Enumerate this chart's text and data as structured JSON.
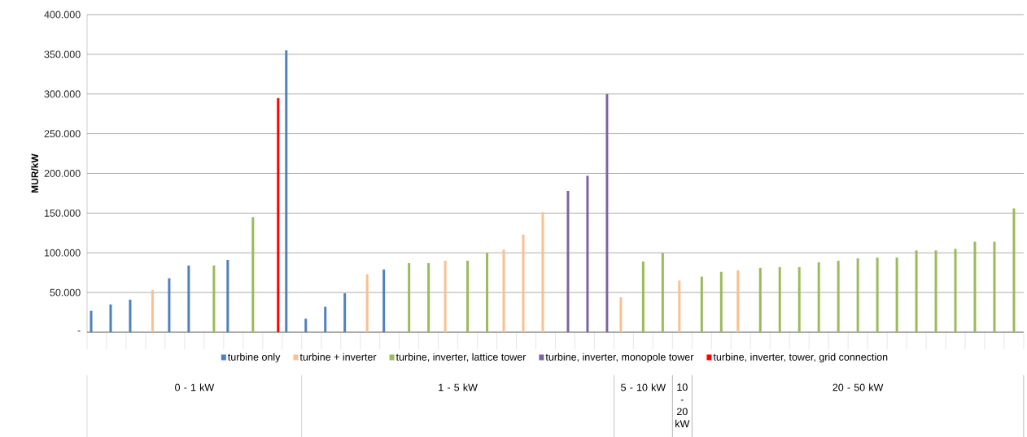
{
  "chart_data": {
    "type": "bar",
    "ylabel": "MUR/kW",
    "categories": [
      null,
      null,
      null,
      null,
      null,
      null,
      null,
      null,
      null,
      null,
      null,
      null,
      null,
      null,
      null,
      null,
      null,
      null,
      null,
      null,
      null,
      null,
      null,
      null,
      null,
      null,
      null,
      null,
      null,
      null,
      null,
      null,
      null,
      null,
      null,
      null,
      null,
      null,
      null,
      null,
      null,
      null,
      null,
      null,
      null,
      null,
      null,
      null
    ],
    "series": [
      {
        "name": "turbine only",
        "color": "#4f81bd",
        "values": [
          27000,
          35000,
          41000,
          null,
          68000,
          84000,
          null,
          91000,
          null,
          null,
          355000,
          17000,
          32000,
          49000,
          null,
          79000,
          null,
          null,
          null,
          null,
          null,
          null,
          null,
          null,
          null,
          null,
          null,
          null,
          null,
          null,
          null,
          null,
          null,
          null,
          null,
          null,
          null,
          null,
          null,
          null,
          null,
          null,
          null,
          null,
          null,
          null,
          null,
          null
        ]
      },
      {
        "name": "turbine + inverter",
        "color": "#fac090",
        "values": [
          null,
          null,
          null,
          53000,
          null,
          null,
          null,
          null,
          null,
          null,
          null,
          null,
          null,
          null,
          73000,
          null,
          null,
          null,
          90000,
          null,
          null,
          104000,
          123000,
          151000,
          null,
          null,
          null,
          44000,
          null,
          null,
          65000,
          null,
          null,
          78000,
          null,
          null,
          null,
          null,
          null,
          null,
          null,
          null,
          null,
          null,
          null,
          null,
          null,
          null
        ]
      },
      {
        "name": "turbine, inverter, lattice tower",
        "color": "#9bbb59",
        "values": [
          null,
          null,
          null,
          null,
          null,
          null,
          84000,
          null,
          145000,
          null,
          null,
          null,
          null,
          null,
          null,
          null,
          87000,
          87000,
          null,
          90000,
          100000,
          null,
          null,
          null,
          null,
          null,
          null,
          null,
          89000,
          100000,
          null,
          70000,
          76000,
          null,
          81000,
          82000,
          82000,
          88000,
          90000,
          93000,
          94000,
          94000,
          103000,
          103000,
          105000,
          114000,
          114000,
          156000
        ]
      },
      {
        "name": "turbine, inverter, monopole tower",
        "color": "#8064a2",
        "values": [
          null,
          null,
          null,
          null,
          null,
          null,
          null,
          null,
          null,
          null,
          null,
          null,
          null,
          null,
          null,
          null,
          null,
          null,
          null,
          null,
          null,
          null,
          null,
          null,
          178000,
          197000,
          300000,
          null,
          null,
          null,
          null,
          null,
          null,
          null,
          null,
          null,
          null,
          null,
          null,
          null,
          null,
          null,
          null,
          null,
          null,
          null,
          null,
          null
        ]
      },
      {
        "name": "turbine, inverter, tower, grid connection",
        "color": "#ff0000",
        "values": [
          null,
          null,
          null,
          null,
          null,
          null,
          null,
          null,
          null,
          295000,
          null,
          null,
          null,
          null,
          null,
          null,
          null,
          null,
          null,
          null,
          null,
          null,
          null,
          null,
          null,
          null,
          null,
          null,
          null,
          null,
          null,
          null,
          null,
          null,
          null,
          null,
          null,
          null,
          null,
          null,
          null,
          null,
          null,
          null,
          null,
          null,
          null,
          null
        ]
      }
    ],
    "ylim": [
      0,
      400000
    ],
    "yticks": [
      {
        "value": 0,
        "label": "-"
      },
      {
        "value": 50000,
        "label": "50.000"
      },
      {
        "value": 100000,
        "label": "100.000"
      },
      {
        "value": 150000,
        "label": "150.000"
      },
      {
        "value": 200000,
        "label": "200.000"
      },
      {
        "value": 250000,
        "label": "250.000"
      },
      {
        "value": 300000,
        "label": "300.000"
      },
      {
        "value": 350000,
        "label": "350.000"
      },
      {
        "value": 400000,
        "label": "400.000"
      }
    ],
    "grid": "y",
    "legend": "bottom",
    "annotations": [
      "0 - 1 kW",
      "1 - 5 kW",
      "5 - 10 kW",
      "10 - 20 kW",
      "20 - 50 kW"
    ]
  }
}
